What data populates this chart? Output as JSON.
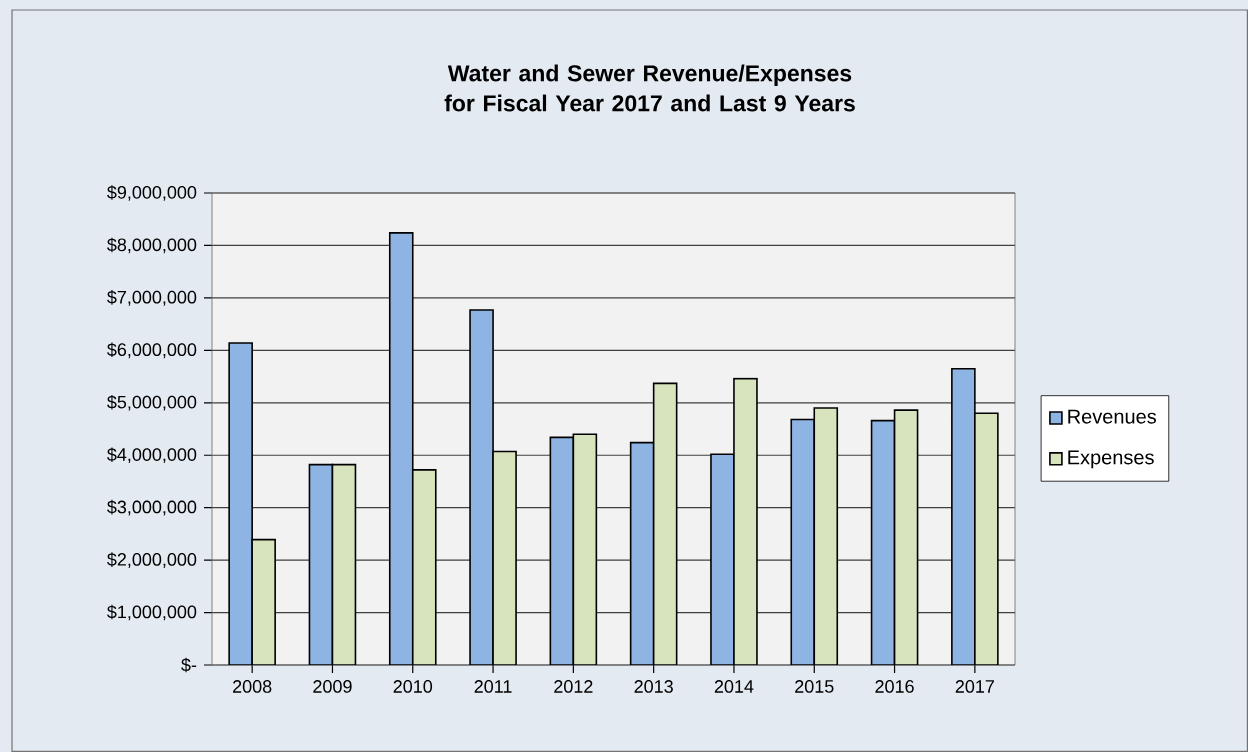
{
  "chart_data": {
    "type": "bar",
    "title": "Water and Sewer Revenue/Expenses for Fiscal Year 2017 and Last 9 Years",
    "categories": [
      "2008",
      "2009",
      "2010",
      "2011",
      "2012",
      "2013",
      "2014",
      "2015",
      "2016",
      "2017"
    ],
    "series": [
      {
        "name": "Revenues",
        "color": "#8eb4e3",
        "values": [
          6140000,
          3820000,
          8240000,
          6770000,
          4340000,
          4240000,
          4020000,
          4680000,
          4660000,
          5650000
        ]
      },
      {
        "name": "Expenses",
        "color": "#d7e4bd",
        "values": [
          2390000,
          3820000,
          3720000,
          4070000,
          4400000,
          5370000,
          5460000,
          4900000,
          4860000,
          4800000
        ]
      }
    ],
    "ylim": [
      0,
      9000000
    ],
    "yticks": [
      {
        "value": 0,
        "label": "$-"
      },
      {
        "value": 1000000,
        "label": "$1,000,000"
      },
      {
        "value": 2000000,
        "label": "$2,000,000"
      },
      {
        "value": 3000000,
        "label": "$3,000,000"
      },
      {
        "value": 4000000,
        "label": "$4,000,000"
      },
      {
        "value": 5000000,
        "label": "$5,000,000"
      },
      {
        "value": 6000000,
        "label": "$6,000,000"
      },
      {
        "value": 7000000,
        "label": "$7,000,000"
      },
      {
        "value": 8000000,
        "label": "$8,000,000"
      },
      {
        "value": 9000000,
        "label": "$9,000,000"
      }
    ],
    "grid": "y",
    "legend": "right"
  }
}
